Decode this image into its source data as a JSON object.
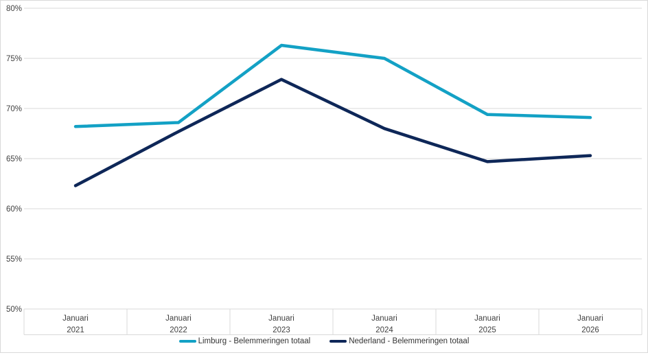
{
  "chart_data": {
    "type": "line",
    "title": "",
    "xlabel": "",
    "ylabel": "",
    "x_month_label": "Januari",
    "categories": [
      "Januari 2021",
      "Januari 2022",
      "Januari 2023",
      "Januari 2024",
      "Januari 2025",
      "Januari 2026"
    ],
    "years": [
      "2021",
      "2022",
      "2023",
      "2024",
      "2025",
      "2026"
    ],
    "series": [
      {
        "name": "Limburg - Belemmeringen totaal",
        "color": "#13a1c5",
        "values": [
          68.2,
          68.6,
          76.3,
          75.0,
          69.4,
          69.1
        ]
      },
      {
        "name": "Nederland - Belemmeringen totaal",
        "color": "#0e2758",
        "values": [
          62.3,
          67.7,
          72.9,
          68.0,
          64.7,
          65.3
        ]
      }
    ],
    "ylim": [
      50,
      80
    ],
    "ytick_step": 5,
    "ytick_labels": [
      "80%",
      "75%",
      "70%",
      "65%",
      "60%",
      "55%",
      "50%"
    ],
    "grid": true,
    "legend_position": "bottom"
  },
  "colors": {
    "gridline": "#d9d9d9",
    "frame_border": "#d9d9d9",
    "tick_text": "#404040"
  }
}
